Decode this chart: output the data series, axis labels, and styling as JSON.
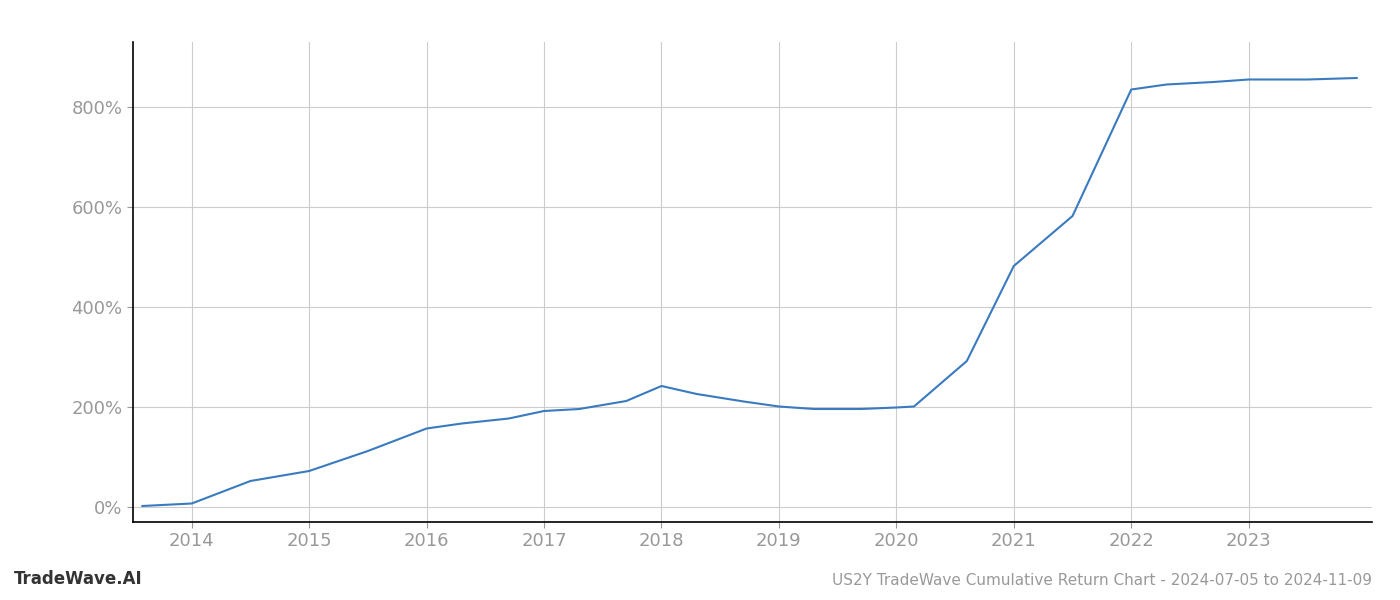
{
  "title": "US2Y TradeWave Cumulative Return Chart - 2024-07-05 to 2024-11-09",
  "watermark": "TradeWave.AI",
  "line_color": "#3a7abf",
  "background_color": "#ffffff",
  "grid_color": "#cccccc",
  "x_values": [
    2013.58,
    2014.0,
    2014.5,
    2015.0,
    2015.5,
    2016.0,
    2016.3,
    2016.7,
    2017.0,
    2017.3,
    2017.7,
    2018.0,
    2018.3,
    2018.7,
    2019.0,
    2019.3,
    2019.7,
    2020.0,
    2020.15,
    2020.6,
    2021.0,
    2021.5,
    2022.0,
    2022.3,
    2022.7,
    2023.0,
    2023.5,
    2023.92
  ],
  "y_values": [
    2,
    7,
    52,
    72,
    112,
    157,
    167,
    177,
    192,
    196,
    212,
    242,
    226,
    211,
    201,
    196,
    196,
    199,
    201,
    292,
    482,
    582,
    835,
    845,
    850,
    855,
    855,
    858
  ],
  "xlim": [
    2013.5,
    2024.05
  ],
  "ylim": [
    -30,
    930
  ],
  "yticks": [
    0,
    200,
    400,
    600,
    800
  ],
  "xticks": [
    2014,
    2015,
    2016,
    2017,
    2018,
    2019,
    2020,
    2021,
    2022,
    2023
  ],
  "line_width": 1.5,
  "title_fontsize": 11,
  "tick_fontsize": 13,
  "watermark_fontsize": 12,
  "tick_color": "#999999",
  "spine_color": "#000000",
  "footer_color": "#999999"
}
